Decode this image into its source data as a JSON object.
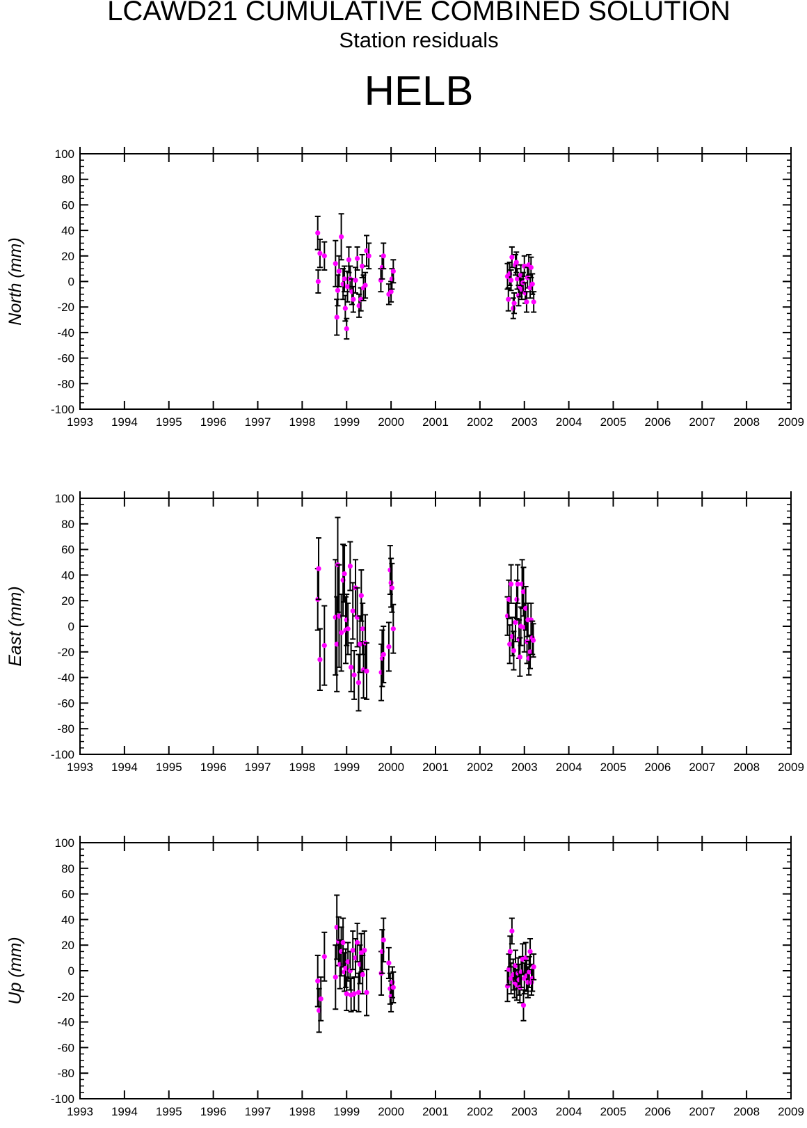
{
  "title": "LCAWD21 CUMULATIVE COMBINED SOLUTION",
  "subtitle": "Station residuals",
  "station": "HELB",
  "colors": {
    "point": "#ff00ff",
    "errorbar": "#000000",
    "axis": "#000000"
  },
  "chart_data": [
    {
      "type": "scatter",
      "ylabel": "North (mm)",
      "xlim": [
        1993,
        2009
      ],
      "ylim": [
        -100,
        100
      ],
      "x_ticks": [
        "1993",
        "1994",
        "1995",
        "1996",
        "1997",
        "1998",
        "1999",
        "2000",
        "2001",
        "2002",
        "2003",
        "2004",
        "2005",
        "2006",
        "2007",
        "2008",
        "2009"
      ],
      "y_ticks": [
        "100",
        "80",
        "60",
        "40",
        "20",
        "0",
        "-20",
        "-40",
        "-60",
        "-80",
        "-100"
      ],
      "grid": false,
      "points": [
        {
          "x": 1998.35,
          "y": 38,
          "err": 13
        },
        {
          "x": 1998.36,
          "y": 0,
          "err": 9
        },
        {
          "x": 1998.4,
          "y": 22,
          "err": 11
        },
        {
          "x": 1998.5,
          "y": 20,
          "err": 11
        },
        {
          "x": 1998.75,
          "y": 14,
          "err": 18
        },
        {
          "x": 1998.78,
          "y": -28,
          "err": 14
        },
        {
          "x": 1998.8,
          "y": -7,
          "err": 12
        },
        {
          "x": 1998.83,
          "y": 8,
          "err": 12
        },
        {
          "x": 1998.88,
          "y": 35,
          "err": 18
        },
        {
          "x": 1998.92,
          "y": -2,
          "err": 12
        },
        {
          "x": 1998.95,
          "y": 2,
          "err": 10
        },
        {
          "x": 1998.97,
          "y": -21,
          "err": 10
        },
        {
          "x": 1999.0,
          "y": -37,
          "err": 8
        },
        {
          "x": 1999.02,
          "y": -4,
          "err": 12
        },
        {
          "x": 1999.05,
          "y": 17,
          "err": 10
        },
        {
          "x": 1999.08,
          "y": 2,
          "err": 10
        },
        {
          "x": 1999.12,
          "y": -8,
          "err": 10
        },
        {
          "x": 1999.15,
          "y": -14,
          "err": 10
        },
        {
          "x": 1999.2,
          "y": 1,
          "err": 10
        },
        {
          "x": 1999.24,
          "y": 18,
          "err": 9
        },
        {
          "x": 1999.28,
          "y": -19,
          "err": 9
        },
        {
          "x": 1999.32,
          "y": -14,
          "err": 9
        },
        {
          "x": 1999.35,
          "y": 12,
          "err": 9
        },
        {
          "x": 1999.38,
          "y": -5,
          "err": 10
        },
        {
          "x": 1999.42,
          "y": -3,
          "err": 10
        },
        {
          "x": 1999.45,
          "y": 24,
          "err": 12
        },
        {
          "x": 1999.5,
          "y": 20,
          "err": 10
        },
        {
          "x": 1999.77,
          "y": 1,
          "err": 9
        },
        {
          "x": 1999.8,
          "y": 11,
          "err": 9
        },
        {
          "x": 1999.83,
          "y": 20,
          "err": 10
        },
        {
          "x": 1999.95,
          "y": -10,
          "err": 8
        },
        {
          "x": 2000.0,
          "y": -8,
          "err": 8
        },
        {
          "x": 2000.02,
          "y": 2,
          "err": 8
        },
        {
          "x": 2000.05,
          "y": 8,
          "err": 9
        },
        {
          "x": 2002.62,
          "y": 4,
          "err": 10
        },
        {
          "x": 2002.64,
          "y": -14,
          "err": 9
        },
        {
          "x": 2002.67,
          "y": 6,
          "err": 9
        },
        {
          "x": 2002.7,
          "y": 1,
          "err": 8
        },
        {
          "x": 2002.72,
          "y": 19,
          "err": 8
        },
        {
          "x": 2002.75,
          "y": -21,
          "err": 8
        },
        {
          "x": 2002.77,
          "y": -17,
          "err": 8
        },
        {
          "x": 2002.8,
          "y": 13,
          "err": 8
        },
        {
          "x": 2002.82,
          "y": 15,
          "err": 8
        },
        {
          "x": 2002.84,
          "y": 2,
          "err": 8
        },
        {
          "x": 2002.87,
          "y": -11,
          "err": 8
        },
        {
          "x": 2002.9,
          "y": -4,
          "err": 8
        },
        {
          "x": 2002.92,
          "y": 5,
          "err": 8
        },
        {
          "x": 2002.94,
          "y": -6,
          "err": 8
        },
        {
          "x": 2002.97,
          "y": -1,
          "err": 8
        },
        {
          "x": 2003.0,
          "y": 12,
          "err": 8
        },
        {
          "x": 2003.02,
          "y": -9,
          "err": 8
        },
        {
          "x": 2003.05,
          "y": -16,
          "err": 8
        },
        {
          "x": 2003.07,
          "y": 3,
          "err": 8
        },
        {
          "x": 2003.1,
          "y": 13,
          "err": 8
        },
        {
          "x": 2003.13,
          "y": -5,
          "err": 8
        },
        {
          "x": 2003.15,
          "y": 11,
          "err": 8
        },
        {
          "x": 2003.18,
          "y": -2,
          "err": 8
        },
        {
          "x": 2003.21,
          "y": -16,
          "err": 8
        }
      ]
    },
    {
      "type": "scatter",
      "ylabel": "East (mm)",
      "xlim": [
        1993,
        2009
      ],
      "ylim": [
        -100,
        100
      ],
      "x_ticks": [
        "1993",
        "1994",
        "1995",
        "1996",
        "1997",
        "1998",
        "1999",
        "2000",
        "2001",
        "2002",
        "2003",
        "2004",
        "2005",
        "2006",
        "2007",
        "2008",
        "2009"
      ],
      "y_ticks": [
        "100",
        "80",
        "60",
        "40",
        "20",
        "0",
        "-20",
        "-40",
        "-60",
        "-80",
        "-100"
      ],
      "grid": false,
      "points": [
        {
          "x": 1998.35,
          "y": 21,
          "err": 24
        },
        {
          "x": 1998.37,
          "y": 45,
          "err": 24
        },
        {
          "x": 1998.4,
          "y": -26,
          "err": 24
        },
        {
          "x": 1998.5,
          "y": -15,
          "err": 31
        },
        {
          "x": 1998.75,
          "y": 7,
          "err": 45
        },
        {
          "x": 1998.78,
          "y": -14,
          "err": 37
        },
        {
          "x": 1998.8,
          "y": 48,
          "err": 37
        },
        {
          "x": 1998.83,
          "y": 8,
          "err": 40
        },
        {
          "x": 1998.88,
          "y": -5,
          "err": 30
        },
        {
          "x": 1998.92,
          "y": 36,
          "err": 28
        },
        {
          "x": 1998.95,
          "y": 41,
          "err": 22
        },
        {
          "x": 1998.98,
          "y": -3,
          "err": 26
        },
        {
          "x": 1999.0,
          "y": 5,
          "err": 20
        },
        {
          "x": 1999.03,
          "y": -2,
          "err": 20
        },
        {
          "x": 1999.08,
          "y": 47,
          "err": 19
        },
        {
          "x": 1999.1,
          "y": -32,
          "err": 19
        },
        {
          "x": 1999.14,
          "y": 12,
          "err": 22
        },
        {
          "x": 1999.17,
          "y": -38,
          "err": 19
        },
        {
          "x": 1999.2,
          "y": 30,
          "err": 22
        },
        {
          "x": 1999.24,
          "y": 7,
          "err": 23
        },
        {
          "x": 1999.27,
          "y": -44,
          "err": 22
        },
        {
          "x": 1999.3,
          "y": -14,
          "err": 22
        },
        {
          "x": 1999.33,
          "y": 24,
          "err": 20
        },
        {
          "x": 1999.36,
          "y": -2,
          "err": 20
        },
        {
          "x": 1999.38,
          "y": -34,
          "err": 22
        },
        {
          "x": 1999.42,
          "y": -13,
          "err": 22
        },
        {
          "x": 1999.45,
          "y": -35,
          "err": 22
        },
        {
          "x": 1999.78,
          "y": -36,
          "err": 22
        },
        {
          "x": 1999.8,
          "y": -25,
          "err": 22
        },
        {
          "x": 1999.83,
          "y": -22,
          "err": 22
        },
        {
          "x": 1999.95,
          "y": -16,
          "err": 19
        },
        {
          "x": 1999.98,
          "y": 44,
          "err": 19
        },
        {
          "x": 2000.0,
          "y": 34,
          "err": 19
        },
        {
          "x": 2000.02,
          "y": 30,
          "err": 19
        },
        {
          "x": 2000.05,
          "y": -2,
          "err": 19
        },
        {
          "x": 2002.62,
          "y": 8,
          "err": 15
        },
        {
          "x": 2002.65,
          "y": 21,
          "err": 15
        },
        {
          "x": 2002.67,
          "y": -14,
          "err": 15
        },
        {
          "x": 2002.7,
          "y": 33,
          "err": 15
        },
        {
          "x": 2002.73,
          "y": -8,
          "err": 15
        },
        {
          "x": 2002.76,
          "y": -19,
          "err": 15
        },
        {
          "x": 2002.8,
          "y": 3,
          "err": 15
        },
        {
          "x": 2002.83,
          "y": 21,
          "err": 15
        },
        {
          "x": 2002.85,
          "y": 33,
          "err": 15
        },
        {
          "x": 2002.88,
          "y": -10,
          "err": 15
        },
        {
          "x": 2002.9,
          "y": -24,
          "err": 15
        },
        {
          "x": 2002.92,
          "y": 0,
          "err": 15
        },
        {
          "x": 2002.95,
          "y": 33,
          "err": 19
        },
        {
          "x": 2002.98,
          "y": 27,
          "err": 19
        },
        {
          "x": 2003.0,
          "y": -1,
          "err": 19
        },
        {
          "x": 2003.03,
          "y": 14,
          "err": 17
        },
        {
          "x": 2003.06,
          "y": -12,
          "err": 17
        },
        {
          "x": 2003.08,
          "y": 5,
          "err": 13
        },
        {
          "x": 2003.1,
          "y": -25,
          "err": 13
        },
        {
          "x": 2003.13,
          "y": -20,
          "err": 13
        },
        {
          "x": 2003.15,
          "y": 5,
          "err": 13
        },
        {
          "x": 2003.18,
          "y": -9,
          "err": 13
        },
        {
          "x": 2003.2,
          "y": -11,
          "err": 13
        }
      ]
    },
    {
      "type": "scatter",
      "ylabel": "Up (mm)",
      "xlim": [
        1993,
        2009
      ],
      "ylim": [
        -100,
        100
      ],
      "x_ticks": [
        "1993",
        "1994",
        "1995",
        "1996",
        "1997",
        "1998",
        "1999",
        "2000",
        "2001",
        "2002",
        "2003",
        "2004",
        "2005",
        "2006",
        "2007",
        "2008",
        "2009"
      ],
      "y_ticks": [
        "100",
        "80",
        "60",
        "40",
        "20",
        "0",
        "-20",
        "-40",
        "-60",
        "-80",
        "-100"
      ],
      "grid": false,
      "points": [
        {
          "x": 1998.35,
          "y": -8,
          "err": 20
        },
        {
          "x": 1998.38,
          "y": -31,
          "err": 17
        },
        {
          "x": 1998.42,
          "y": -22,
          "err": 17
        },
        {
          "x": 1998.5,
          "y": 11,
          "err": 19
        },
        {
          "x": 1998.75,
          "y": -5,
          "err": 25
        },
        {
          "x": 1998.78,
          "y": 34,
          "err": 25
        },
        {
          "x": 1998.82,
          "y": 23,
          "err": 19
        },
        {
          "x": 1998.85,
          "y": 5,
          "err": 19
        },
        {
          "x": 1998.88,
          "y": 15,
          "err": 19
        },
        {
          "x": 1998.92,
          "y": 22,
          "err": 19
        },
        {
          "x": 1998.95,
          "y": -1,
          "err": 15
        },
        {
          "x": 1998.98,
          "y": 2,
          "err": 15
        },
        {
          "x": 1999.0,
          "y": -18,
          "err": 13
        },
        {
          "x": 1999.03,
          "y": 7,
          "err": 15
        },
        {
          "x": 1999.08,
          "y": 0,
          "err": 15
        },
        {
          "x": 1999.1,
          "y": -19,
          "err": 13
        },
        {
          "x": 1999.14,
          "y": 16,
          "err": 15
        },
        {
          "x": 1999.17,
          "y": -18,
          "err": 13
        },
        {
          "x": 1999.2,
          "y": 10,
          "err": 15
        },
        {
          "x": 1999.24,
          "y": 22,
          "err": 15
        },
        {
          "x": 1999.27,
          "y": -17,
          "err": 15
        },
        {
          "x": 1999.3,
          "y": 5,
          "err": 15
        },
        {
          "x": 1999.33,
          "y": 14,
          "err": 15
        },
        {
          "x": 1999.36,
          "y": -3,
          "err": 15
        },
        {
          "x": 1999.4,
          "y": 16,
          "err": 15
        },
        {
          "x": 1999.45,
          "y": -17,
          "err": 18
        },
        {
          "x": 1999.78,
          "y": -2,
          "err": 17
        },
        {
          "x": 1999.8,
          "y": 15,
          "err": 17
        },
        {
          "x": 1999.83,
          "y": 24,
          "err": 17
        },
        {
          "x": 1999.95,
          "y": 6,
          "err": 12
        },
        {
          "x": 1999.98,
          "y": -14,
          "err": 12
        },
        {
          "x": 2000.0,
          "y": -20,
          "err": 12
        },
        {
          "x": 2000.03,
          "y": -9,
          "err": 12
        },
        {
          "x": 2000.05,
          "y": -13,
          "err": 12
        },
        {
          "x": 2002.62,
          "y": -12,
          "err": 12
        },
        {
          "x": 2002.65,
          "y": 1,
          "err": 12
        },
        {
          "x": 2002.68,
          "y": 15,
          "err": 12
        },
        {
          "x": 2002.7,
          "y": -6,
          "err": 12
        },
        {
          "x": 2002.72,
          "y": 31,
          "err": 10
        },
        {
          "x": 2002.75,
          "y": -3,
          "err": 12
        },
        {
          "x": 2002.78,
          "y": -9,
          "err": 12
        },
        {
          "x": 2002.8,
          "y": 4,
          "err": 12
        },
        {
          "x": 2002.83,
          "y": -11,
          "err": 12
        },
        {
          "x": 2002.86,
          "y": -2,
          "err": 12
        },
        {
          "x": 2002.88,
          "y": -7,
          "err": 12
        },
        {
          "x": 2002.9,
          "y": -13,
          "err": 12
        },
        {
          "x": 2002.93,
          "y": -1,
          "err": 12
        },
        {
          "x": 2002.96,
          "y": 9,
          "err": 12
        },
        {
          "x": 2002.98,
          "y": -27,
          "err": 12
        },
        {
          "x": 2003.0,
          "y": -6,
          "err": 12
        },
        {
          "x": 2003.03,
          "y": 10,
          "err": 12
        },
        {
          "x": 2003.05,
          "y": -4,
          "err": 12
        },
        {
          "x": 2003.08,
          "y": -9,
          "err": 12
        },
        {
          "x": 2003.11,
          "y": -1,
          "err": 12
        },
        {
          "x": 2003.13,
          "y": 15,
          "err": 10
        },
        {
          "x": 2003.16,
          "y": -9,
          "err": 10
        },
        {
          "x": 2003.18,
          "y": -6,
          "err": 10
        },
        {
          "x": 2003.21,
          "y": 3,
          "err": 10
        }
      ]
    }
  ]
}
